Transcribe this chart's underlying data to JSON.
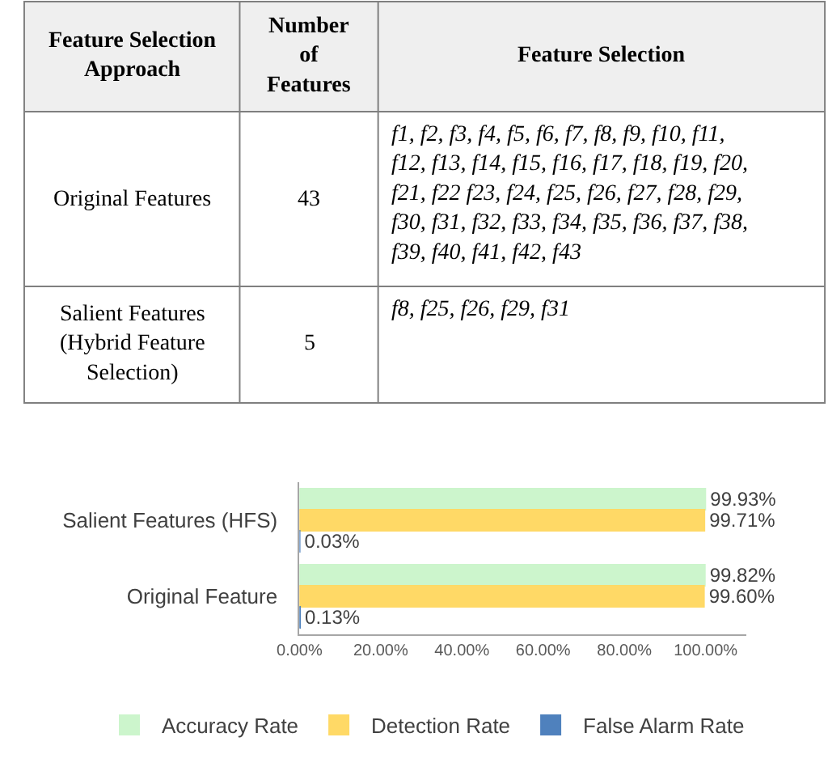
{
  "chart_data": [
    {
      "type": "other",
      "annotations": [
        "Feature Selection Approach",
        "Number of Features",
        "Feature Selection",
        "Original Features",
        "43",
        "f1, f2, f3, f4, f5, f6, f7, f8, f9, f10, f11, f12, f13, f14, f15, f16, f17, f18, f19, f20, f21, f22 f23, f24, f25, f26, f27, f28, f29, f30, f31, f32, f33, f34, f35, f36, f37, f38, f39, f40, f41, f42, f43",
        "Salient Features (Hybrid Feature Selection)",
        "5",
        "f8, f25, f26, f29, f31"
      ]
    },
    {
      "type": "bar",
      "orientation": "horizontal",
      "categories": [
        "Salient Features (HFS)",
        "Original Feature"
      ],
      "series": [
        {
          "name": "Accuracy Rate",
          "color": "#ccf5cc",
          "values": [
            99.93,
            99.82
          ],
          "value_labels": [
            "99.93%",
            "99.82%"
          ]
        },
        {
          "name": "Detection Rate",
          "color": "#ffd966",
          "values": [
            99.71,
            99.6
          ],
          "value_labels": [
            "99.71%",
            "99.60%"
          ]
        },
        {
          "name": "False Alarm Rate",
          "color": "#4f81bd",
          "values": [
            0.03,
            0.13
          ],
          "value_labels": [
            "0.03%",
            "0.13%"
          ]
        }
      ],
      "xlim": [
        0,
        110
      ],
      "xticks": [
        {
          "value": 0,
          "label": "0.00%"
        },
        {
          "value": 20,
          "label": "20.00%"
        },
        {
          "value": 40,
          "label": "40.00%"
        },
        {
          "value": 60,
          "label": "60.00%"
        },
        {
          "value": 80,
          "label": "80.00%"
        },
        {
          "value": 100,
          "label": "100.00%"
        }
      ],
      "legend": "bottom"
    }
  ]
}
